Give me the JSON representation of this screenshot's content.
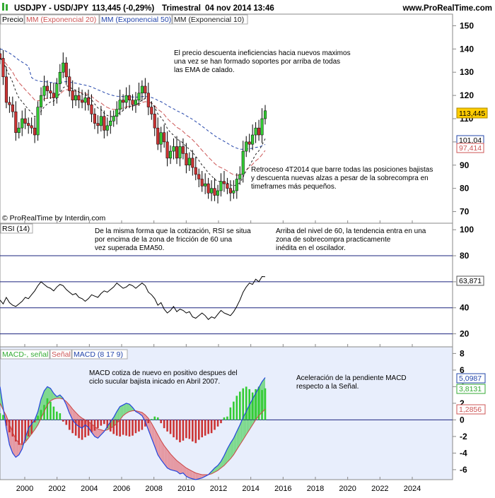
{
  "header": {
    "symbol": "USDJPY - USD/JPY",
    "quote": "113,445 (-0,29%)",
    "period": "Trimestral",
    "datetime": "04 nov 2014 13:46",
    "site": "www.ProRealTime.com"
  },
  "copyright": "© ProRealTime by Interdin.com",
  "price_panel": {
    "legend": [
      "Precio",
      "MM (Exponencial 20)",
      "MM (Exponencial 50)",
      "MM (Exponencial 10)"
    ],
    "value_tags": {
      "price": "113,445",
      "ema50": "101,04",
      "ema20": "97,414"
    },
    "notes": [
      [
        "El precio descuenta ineficiencias hacia nuevos maximos",
        "una vez se han formado soportes por arriba de todas",
        "las EMA de calado."
      ],
      [
        "Retroceso 4T2014 que barre todas las posiciones bajistas",
        "y descuenta nuevas alzas a pesar de la sobrecompra en",
        "timeframes más pequeños."
      ]
    ]
  },
  "rsi_panel": {
    "label": "RSI (14)",
    "value_tag": "63,871",
    "notes": [
      [
        "De la misma forma que la cotización, RSI se situa",
        "por encima de la zona de fricción de 60 una",
        "vez superada EMA50."
      ],
      [
        "Arriba del nivel de 60, la tendencia entra en una",
        "zona de sobrecompra practicamente",
        "inédita en el oscilador."
      ]
    ]
  },
  "macd_panel": {
    "legend": [
      "MACD-, señal",
      "Señal",
      "MACD (8 17 9)"
    ],
    "value_tags": {
      "macd": "5,0987",
      "hist": "3,8131",
      "signal": "1,2856"
    },
    "notes": [
      [
        "MACD cotiza de nuevo en positivo despues del",
        "ciclo sucular bajista inicado en Abril 2007."
      ],
      [
        "Aceleración de la pendiente MACD",
        "respecto a la Señal."
      ]
    ]
  },
  "colors": {
    "up": "#33cc33",
    "down": "#cc3333",
    "ema20": "#cc5555",
    "ema50": "#2244aa",
    "ema10": "#222222",
    "tag": "#ffcc00",
    "panel_bg": "#e8eefc"
  },
  "chart_data": [
    {
      "type": "candlestick",
      "title": "USDJPY - USD/JPY",
      "xlim": [
        1999,
        2025
      ],
      "ylim": [
        65,
        155
      ],
      "x_ticks": [
        "2000",
        "2002",
        "2004",
        "2006",
        "2008",
        "2010",
        "2012",
        "2014",
        "2016",
        "2018",
        "2020",
        "2022",
        "2024"
      ],
      "y_ticks": [
        "70",
        "80",
        "90",
        "100",
        "110",
        "120",
        "130",
        "140",
        "150"
      ],
      "close": [
        136,
        128,
        117,
        116,
        113,
        104,
        106,
        110,
        108,
        107,
        106,
        103,
        115,
        120,
        124,
        122,
        121,
        119,
        125,
        130,
        134,
        128,
        122,
        118,
        120,
        118,
        117,
        119,
        116,
        112,
        108,
        107,
        111,
        105,
        107,
        109,
        111,
        114,
        118,
        117,
        120,
        118,
        116,
        118,
        121,
        124,
        121,
        115,
        112,
        106,
        99,
        104,
        100,
        93,
        96,
        98,
        93,
        98,
        95,
        90,
        93,
        89,
        86,
        84,
        81,
        82,
        78,
        80,
        77,
        79,
        83,
        82,
        80,
        78,
        79,
        84,
        86,
        96,
        100,
        99,
        103,
        106,
        103,
        110,
        113.4
      ],
      "series": [
        {
          "name": "MM (Exponencial 20)"
        },
        {
          "name": "MM (Exponencial 50)"
        },
        {
          "name": "MM (Exponencial 10)"
        }
      ]
    },
    {
      "type": "line",
      "title": "RSI (14)",
      "ylim": [
        10,
        105
      ],
      "y_ticks": [
        "20",
        "40",
        "60",
        "80",
        "100"
      ],
      "levels": [
        20,
        40,
        60,
        80
      ],
      "values": [
        46,
        43,
        48,
        44,
        42,
        41,
        43,
        45,
        48,
        47,
        50,
        53,
        57,
        60,
        58,
        56,
        55,
        53,
        56,
        58,
        57,
        54,
        52,
        50,
        51,
        48,
        47,
        45,
        47,
        50,
        49,
        48,
        51,
        53,
        52,
        54,
        56,
        59,
        57,
        55,
        56,
        58,
        57,
        55,
        57,
        59,
        57,
        52,
        50,
        47,
        42,
        44,
        39,
        36,
        38,
        41,
        37,
        39,
        38,
        36,
        37,
        33,
        32,
        34,
        36,
        34,
        31,
        33,
        32,
        35,
        38,
        36,
        35,
        34,
        37,
        41,
        46,
        52,
        56,
        59,
        58,
        62,
        60,
        64,
        63.9
      ]
    },
    {
      "type": "bar+line",
      "title": "MACD (8 17 9)",
      "ylim": [
        -7.2,
        8.8
      ],
      "y_ticks": [
        "-6",
        "-4",
        "-2",
        "0",
        "2",
        "4",
        "6",
        "8"
      ],
      "macd": [
        4,
        1.5,
        -1,
        -3,
        -4,
        -4.5,
        -4.2,
        -3.5,
        -2.2,
        -1,
        -0.5,
        0,
        1,
        2.5,
        3.5,
        4,
        3.8,
        3.2,
        2.8,
        3,
        2.6,
        1.8,
        0.8,
        0,
        -0.5,
        -0.8,
        -1,
        -0.6,
        -0.9,
        -1.5,
        -2,
        -2.2,
        -1.8,
        -1.4,
        -0.8,
        -0.2,
        0.3,
        1,
        1.6,
        1.8,
        2,
        1.9,
        1.5,
        1,
        0.8,
        0.5,
        -0.2,
        -1.2,
        -2.2,
        -3.2,
        -4.2,
        -4.8,
        -5.3,
        -5.8,
        -6,
        -6.1,
        -6.2,
        -6.5,
        -6.4,
        -6.8,
        -7,
        -7.1,
        -7.2,
        -7.1,
        -7,
        -6.8,
        -6.6,
        -6.2,
        -5.8,
        -5.5,
        -5,
        -4.3,
        -3.5,
        -2.8,
        -2.2,
        -1.4,
        -0.6,
        0.3,
        1,
        1.8,
        2.5,
        3.2,
        3.9,
        4.6,
        5.1
      ],
      "signal": [
        2,
        1.2,
        0.5,
        -0.5,
        -1.5,
        -2.3,
        -2.8,
        -3,
        -2.7,
        -2.2,
        -1.7,
        -1.2,
        -0.6,
        0.2,
        1,
        1.8,
        2.3,
        2.5,
        2.6,
        2.6,
        2.5,
        2.2,
        1.8,
        1.3,
        0.9,
        0.5,
        0.2,
        0,
        -0.2,
        -0.5,
        -0.8,
        -1.1,
        -1.2,
        -1.3,
        -1.2,
        -1,
        -0.8,
        -0.4,
        0,
        0.5,
        0.8,
        1,
        1.1,
        1.1,
        1,
        0.9,
        0.6,
        0.2,
        -0.4,
        -1.1,
        -1.8,
        -2.5,
        -3.1,
        -3.6,
        -4.1,
        -4.5,
        -4.9,
        -5.2,
        -5.5,
        -5.8,
        -6,
        -6.2,
        -6.4,
        -6.5,
        -6.6,
        -6.6,
        -6.6,
        -6.5,
        -6.3,
        -6.1,
        -5.8,
        -5.5,
        -5.1,
        -4.7,
        -4.2,
        -3.6,
        -3,
        -2.4,
        -1.8,
        -1.2,
        -0.6,
        0,
        0.5,
        0.9,
        1.3
      ],
      "histogram": [
        0.8,
        0.6,
        -0.7,
        -1.5,
        -2,
        -2.6,
        -3,
        -2.9,
        -2.5,
        -2,
        -1.7,
        -0.3,
        0.5,
        1.2,
        1.8,
        2.6,
        2.2,
        1.6,
        1,
        0.8,
        -0.2,
        -0.6,
        -1.2,
        -1.6,
        -1.9,
        -2.2,
        -2.4,
        -2.1,
        -1.9,
        -1.5,
        -1.3,
        -1,
        -0.7,
        -0.5,
        -1,
        -1.4,
        -1.7,
        -1.9,
        -2,
        -1.8,
        -1.9,
        -2,
        -1.9,
        -1.6,
        -1.4,
        -1.2,
        -0.8,
        -0.4,
        0.1,
        0.4,
        0.3,
        -0.4,
        -1,
        -1.4,
        -1.7,
        -2.1,
        -2.4,
        -2.7,
        -2.5,
        -2.2,
        -2.3,
        -2.6,
        -2.8,
        -2.4,
        -2.1,
        -1.9,
        -1.7,
        -1.6,
        -1.2,
        -0.8,
        -0.4,
        0.3,
        0.4,
        1.5,
        2.2,
        2.9,
        3.4,
        3.8,
        4,
        3.7,
        3.3,
        3.7,
        4,
        3.6,
        3.8
      ]
    }
  ]
}
